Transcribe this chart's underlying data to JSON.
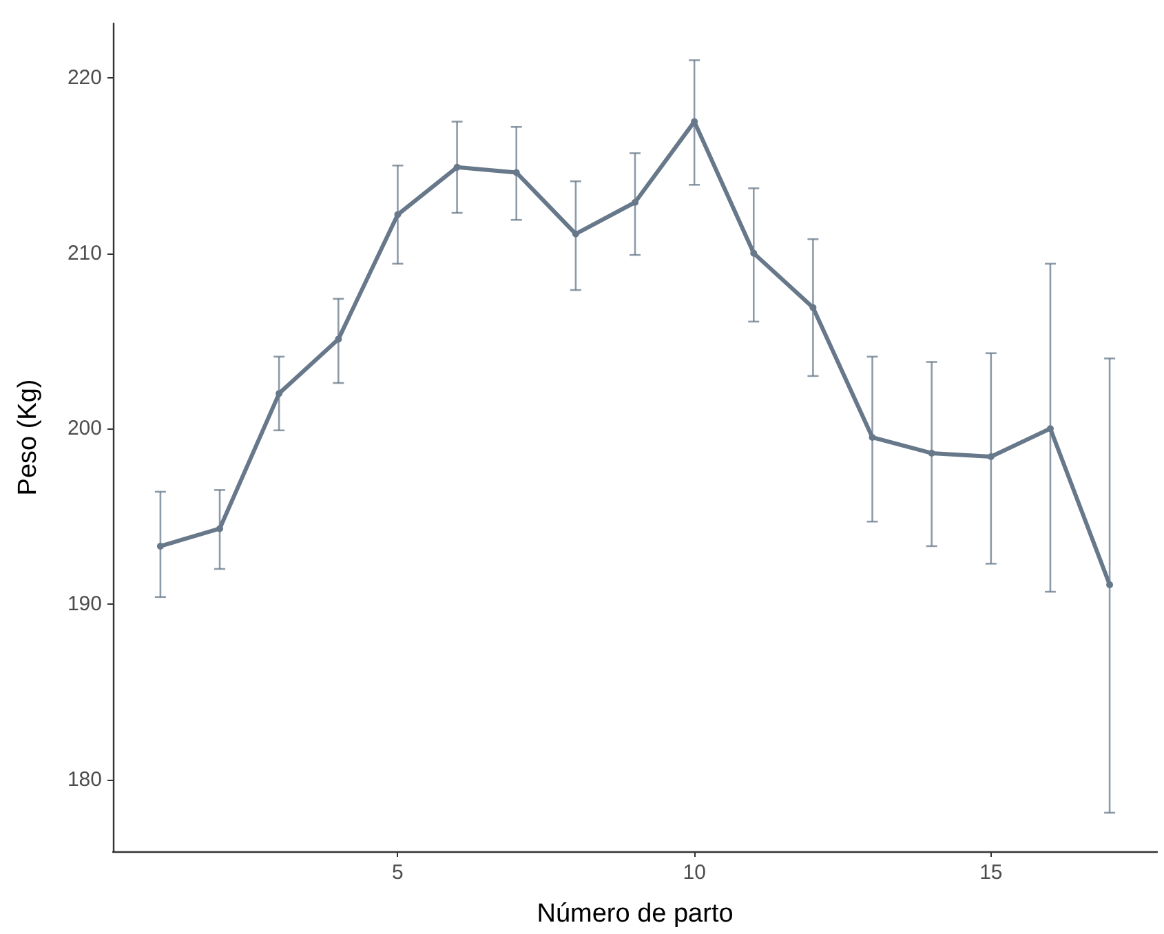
{
  "chart_data": {
    "type": "line",
    "xlabel": "Número de parto",
    "ylabel": "Peso (Kg)",
    "x": [
      1,
      2,
      3,
      4,
      5,
      6,
      7,
      8,
      9,
      10,
      11,
      12,
      13,
      14,
      15,
      16,
      17
    ],
    "series": [
      {
        "color": "#67788a",
        "values": [
          193.3,
          194.3,
          202.0,
          205.1,
          212.2,
          214.9,
          214.6,
          211.1,
          212.9,
          217.5,
          210.0,
          206.9,
          199.5,
          198.6,
          198.4,
          200.0,
          191.1
        ],
        "errors": [
          [
            190.4,
            196.4
          ],
          [
            192.0,
            196.5
          ],
          [
            199.9,
            204.1
          ],
          [
            202.6,
            207.4
          ],
          [
            209.4,
            215.0
          ],
          [
            212.3,
            217.5
          ],
          [
            211.9,
            217.2
          ],
          [
            207.9,
            214.1
          ],
          [
            209.9,
            215.7
          ],
          [
            213.9,
            221.0
          ],
          [
            206.1,
            213.7
          ],
          [
            203.0,
            210.8
          ],
          [
            194.7,
            204.1
          ],
          [
            193.3,
            203.8
          ],
          [
            192.3,
            204.3
          ],
          [
            190.7,
            209.4
          ],
          [
            178.1,
            204.0
          ]
        ]
      }
    ],
    "xlim": [
      0.2,
      17.8
    ],
    "xticks": [
      5,
      10,
      15
    ],
    "ylim": [
      175.9,
      223.1
    ],
    "yticks": [
      180,
      190,
      200,
      210,
      220
    ],
    "grid": false,
    "marker": "circle",
    "line_style": "solid"
  }
}
